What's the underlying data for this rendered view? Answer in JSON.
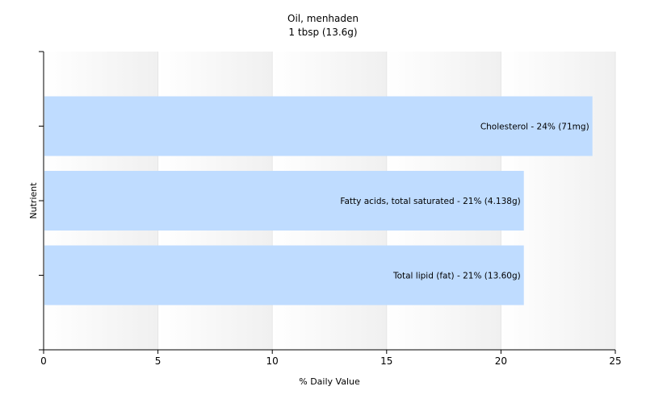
{
  "chart_data": {
    "type": "bar",
    "orientation": "horizontal",
    "title": "Oil, menhaden",
    "subtitle": "1 tbsp (13.6g)",
    "xlabel": "% Daily Value",
    "ylabel": "Nutrient",
    "xlim": [
      0,
      25
    ],
    "xticks": [
      "0",
      "5",
      "10",
      "15",
      "20",
      "25"
    ],
    "grid": true,
    "bar_color": "#bfdcff",
    "categories": [
      "Cholesterol",
      "Fatty acids, total saturated",
      "Total lipid (fat)"
    ],
    "values": [
      24,
      21,
      21
    ],
    "bar_labels": [
      "Cholesterol - 24% (71mg)",
      "Fatty acids, total saturated - 21% (4.138g)",
      "Total lipid (fat) - 21% (13.60g)"
    ]
  }
}
